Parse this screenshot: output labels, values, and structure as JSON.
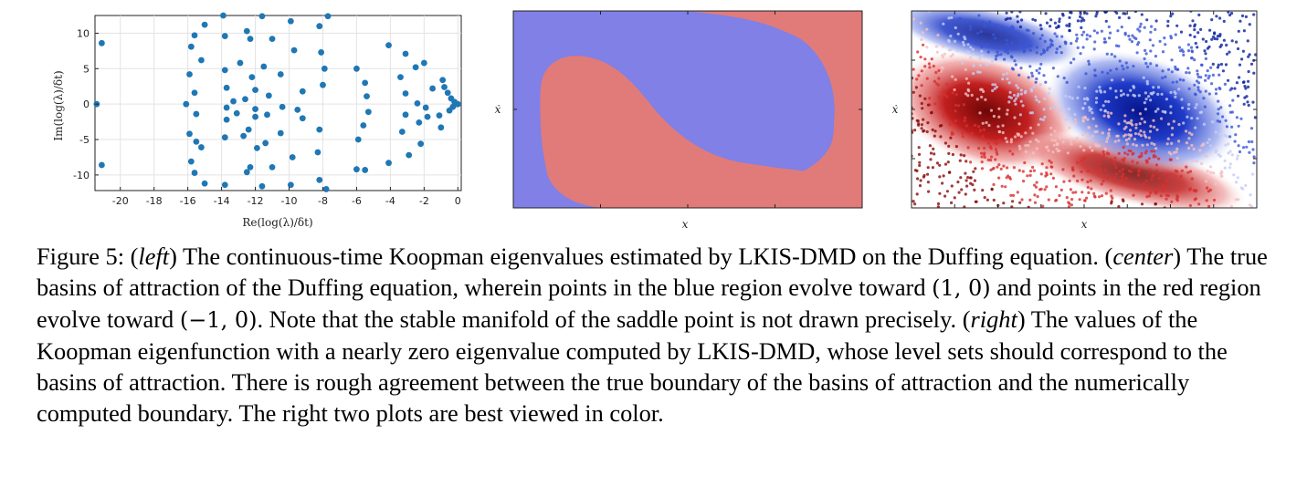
{
  "figure": {
    "left_panel": {
      "xlabel": "Re(log(λ)/δt)",
      "ylabel": "Im(log(λ)/δt)",
      "colors": {
        "point": "#1f77b4",
        "grid": "#e3e3e3",
        "axis": "#222222"
      },
      "chart_data": {
        "type": "scatter",
        "title": "",
        "xlabel": "Re(log(λ)/δt)",
        "ylabel": "Im(log(λ)/δt)",
        "xlim": [
          -21.5,
          0.2
        ],
        "ylim": [
          -12.2,
          12.5
        ],
        "x_ticks": [
          -20,
          -18,
          -16,
          -14,
          -12,
          -10,
          -8,
          -6,
          -4,
          -2,
          0
        ],
        "y_ticks": [
          10,
          5,
          0,
          -5,
          -10
        ],
        "grid": true,
        "points": [
          [
            -21.4,
            0
          ],
          [
            -21.1,
            8.6
          ],
          [
            -21.1,
            -8.6
          ],
          [
            -16.1,
            0
          ],
          [
            -15.9,
            4.2
          ],
          [
            -15.9,
            -4.2
          ],
          [
            -15.8,
            8.1
          ],
          [
            -15.8,
            -8.1
          ],
          [
            -15.6,
            9.7
          ],
          [
            -15.6,
            -9.7
          ],
          [
            -15.6,
            1.6
          ],
          [
            -15.5,
            -1.4
          ],
          [
            -15.5,
            -5.3
          ],
          [
            -15.2,
            6.2
          ],
          [
            -15.2,
            -6.1
          ],
          [
            -15.0,
            11.2
          ],
          [
            -15.0,
            -11.2
          ],
          [
            -13.9,
            12.5
          ],
          [
            -13.8,
            -11.4
          ],
          [
            -13.8,
            9.6
          ],
          [
            -13.8,
            4.8
          ],
          [
            -13.8,
            -4.7
          ],
          [
            -13.7,
            2.3
          ],
          [
            -13.7,
            -2.2
          ],
          [
            -13.7,
            -0.5
          ],
          [
            -13.3,
            0.4
          ],
          [
            -13.1,
            -1.3
          ],
          [
            -12.9,
            5.8
          ],
          [
            -12.7,
            -4.5
          ],
          [
            -12.6,
            0.7
          ],
          [
            -12.5,
            -9.6
          ],
          [
            -12.5,
            10.3
          ],
          [
            -12.3,
            -8.9
          ],
          [
            -12.3,
            9.2
          ],
          [
            -12.4,
            -3.6
          ],
          [
            -12.2,
            3.8
          ],
          [
            -12.0,
            -1.8
          ],
          [
            -12.0,
            -0.7
          ],
          [
            -12.0,
            2.0
          ],
          [
            -11.9,
            -6.2
          ],
          [
            -11.6,
            12.4
          ],
          [
            -11.6,
            -11.6
          ],
          [
            -11.5,
            5.3
          ],
          [
            -11.4,
            -5.5
          ],
          [
            -11.3,
            -1.5
          ],
          [
            -11.2,
            1.2
          ],
          [
            -11.0,
            9.2
          ],
          [
            -11.0,
            -8.9
          ],
          [
            -10.5,
            4.2
          ],
          [
            -10.5,
            -4.1
          ],
          [
            -10.4,
            -0.4
          ],
          [
            -9.9,
            11.7
          ],
          [
            -9.9,
            -11.4
          ],
          [
            -9.8,
            -7.5
          ],
          [
            -9.7,
            7.6
          ],
          [
            -9.5,
            -0.8
          ],
          [
            -9.2,
            1.8
          ],
          [
            -9.2,
            -2.0
          ],
          [
            -8.3,
            -6.8
          ],
          [
            -8.2,
            -10.7
          ],
          [
            -8.2,
            -3.6
          ],
          [
            -8.2,
            11.0
          ],
          [
            -8.1,
            7.3
          ],
          [
            -8.0,
            2.7
          ],
          [
            -7.9,
            5.0
          ],
          [
            -7.8,
            -12.0
          ],
          [
            -7.7,
            12.4
          ],
          [
            -6.0,
            -9.2
          ],
          [
            -6.0,
            5.0
          ],
          [
            -5.9,
            -5.0
          ],
          [
            -5.6,
            -3.0
          ],
          [
            -5.5,
            3.0
          ],
          [
            -5.5,
            -9.3
          ],
          [
            -5.4,
            1.1
          ],
          [
            -5.3,
            -1.1
          ],
          [
            -4.1,
            8.3
          ],
          [
            -4.1,
            -8.3
          ],
          [
            -3.4,
            3.8
          ],
          [
            -3.3,
            -3.9
          ],
          [
            -3.1,
            1.5
          ],
          [
            -3.1,
            -1.5
          ],
          [
            -3.1,
            7.1
          ],
          [
            -2.9,
            -7.2
          ],
          [
            -2.5,
            5.2
          ],
          [
            -2.4,
            0.1
          ],
          [
            -2.3,
            -2.6
          ],
          [
            -2.2,
            -5.6
          ],
          [
            -2.0,
            5.8
          ],
          [
            -1.9,
            -0.5
          ],
          [
            -1.8,
            -1.8
          ],
          [
            -1.5,
            2.2
          ],
          [
            -1.1,
            -1.6
          ],
          [
            -1.0,
            -3.3
          ],
          [
            -0.9,
            3.4
          ],
          [
            -0.8,
            2.4
          ],
          [
            -0.6,
            1.6
          ],
          [
            -0.5,
            -0.9
          ],
          [
            -0.4,
            0.8
          ],
          [
            -0.3,
            -0.4
          ],
          [
            -0.2,
            0.3
          ],
          [
            -0.1,
            0
          ],
          [
            0.0,
            0
          ]
        ]
      }
    },
    "center_panel": {
      "xlabel": "x",
      "ylabel": "ẋ",
      "colors": {
        "blue_region": "#8080e6",
        "red_region": "#e17b79",
        "frame": "#222222"
      }
    },
    "right_panel": {
      "xlabel": "x",
      "ylabel": "ẋ",
      "colors": {
        "dark_blue": "#0a1f9e",
        "mid_blue": "#3a55d6",
        "light_blue": "#c5cdf5",
        "dark_red": "#8a0a0a",
        "mid_red": "#d83030",
        "light_red": "#f4c0c0",
        "frame": "#222222"
      }
    }
  },
  "caption": {
    "fig_label": "Figure 5:",
    "left_word": "left",
    "s1": " The continuous-time Koopman eigenvalues estimated by LKIS-DMD on the Duffing equation. (",
    "center_word": "center",
    "s2": ") The true basins of attraction of the Duffing equation, wherein points in the blue region evolve toward ",
    "math1": "(1, 0)",
    "s3": " and points in the red region evolve toward ",
    "math2": "(−1, 0)",
    "s4": ". Note that the stable manifold of the saddle point is not drawn precisely. (",
    "right_word": "right",
    "s5": ") The values of the Koopman eigenfunction with a nearly zero eigenvalue computed by LKIS-DMD, whose level sets should correspond to the basins of attraction. There is rough agreement between the true boundary of the basins of attraction and the numerically computed boundary. The right two plots are best viewed in color."
  }
}
